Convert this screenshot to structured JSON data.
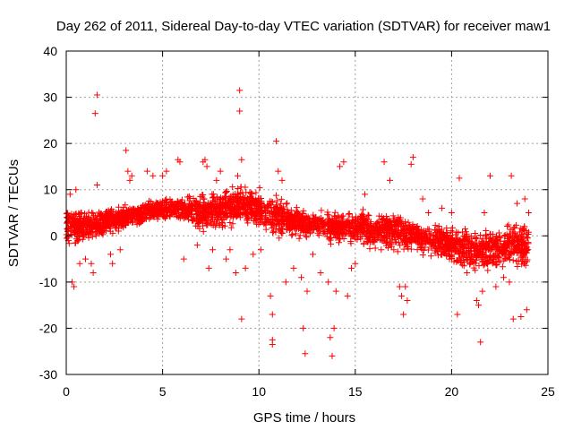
{
  "chart_data": {
    "type": "scatter",
    "title": "Day 262 of 2011, Sidereal Day-to-day VTEC variation (SDTVAR) for receiver maw1",
    "xlabel": "GPS time / hours",
    "ylabel": "SDTVAR / TECUs",
    "xlim": [
      0,
      25
    ],
    "ylim": [
      -30,
      40
    ],
    "xticks": [
      0,
      5,
      10,
      15,
      20,
      25
    ],
    "yticks": [
      -30,
      -20,
      -10,
      0,
      10,
      20,
      30,
      40
    ],
    "xtick_labels": [
      "0",
      "5",
      "10",
      "15",
      "20",
      "25"
    ],
    "ytick_labels": [
      "-30",
      "-20",
      "-10",
      "0",
      "10",
      "20",
      "30",
      "40"
    ],
    "grid": true,
    "marker": "+",
    "color": "#ff0000",
    "series": [
      {
        "name": "SDTVAR",
        "band": {
          "x": [
            0,
            1,
            2,
            3,
            4,
            5,
            6,
            7,
            8,
            9,
            10,
            11,
            12,
            13,
            14,
            15,
            16,
            17,
            18,
            19,
            20,
            21,
            22,
            23,
            24
          ],
          "center": [
            2,
            2,
            3,
            4,
            5,
            6,
            6,
            5,
            6,
            7,
            6,
            4,
            3,
            2,
            2,
            2,
            1,
            1,
            0,
            -1,
            -2,
            -3,
            -3,
            -2,
            -2
          ],
          "spread": [
            5,
            4,
            4,
            3,
            3,
            3,
            3,
            5,
            5,
            5,
            5,
            5,
            4,
            4,
            4,
            4,
            5,
            5,
            4,
            4,
            5,
            6,
            6,
            6,
            6
          ]
        },
        "points": [
          [
            0.2,
            9
          ],
          [
            0.3,
            -10
          ],
          [
            0.4,
            -11
          ],
          [
            0.5,
            10
          ],
          [
            0.7,
            -6
          ],
          [
            1.0,
            -5
          ],
          [
            1.3,
            -6
          ],
          [
            1.4,
            -8
          ],
          [
            1.5,
            26.5
          ],
          [
            1.6,
            30.5
          ],
          [
            1.6,
            11
          ],
          [
            2.3,
            -4
          ],
          [
            2.4,
            -6
          ],
          [
            2.8,
            -3
          ],
          [
            3.1,
            18.5
          ],
          [
            3.2,
            14
          ],
          [
            3.3,
            12
          ],
          [
            3.4,
            13
          ],
          [
            4.2,
            14
          ],
          [
            4.5,
            13
          ],
          [
            5.0,
            13
          ],
          [
            5.2,
            14
          ],
          [
            5.8,
            16.5
          ],
          [
            5.9,
            16
          ],
          [
            6.1,
            -5
          ],
          [
            6.8,
            -2
          ],
          [
            6.9,
            3
          ],
          [
            7.1,
            16
          ],
          [
            7.2,
            16.5
          ],
          [
            7.3,
            15
          ],
          [
            7.4,
            -7
          ],
          [
            7.6,
            -3
          ],
          [
            7.8,
            12
          ],
          [
            8.0,
            14
          ],
          [
            8.3,
            -5
          ],
          [
            8.5,
            -3
          ],
          [
            8.8,
            -8
          ],
          [
            8.9,
            13
          ],
          [
            9.0,
            31.5
          ],
          [
            9.0,
            27
          ],
          [
            9.1,
            16.5
          ],
          [
            9.1,
            -18
          ],
          [
            9.3,
            -7
          ],
          [
            9.7,
            -4
          ],
          [
            10.1,
            -3
          ],
          [
            10.6,
            -13
          ],
          [
            10.7,
            -17
          ],
          [
            10.7,
            -22.5
          ],
          [
            10.7,
            -23.5
          ],
          [
            10.9,
            20.5
          ],
          [
            11.0,
            14
          ],
          [
            11.2,
            12
          ],
          [
            11.4,
            -10
          ],
          [
            11.8,
            -7
          ],
          [
            12.2,
            -9
          ],
          [
            12.3,
            -20
          ],
          [
            12.4,
            -25.5
          ],
          [
            12.5,
            -12
          ],
          [
            12.8,
            -4
          ],
          [
            13.2,
            -8
          ],
          [
            13.6,
            -10
          ],
          [
            13.7,
            -22
          ],
          [
            13.8,
            -26
          ],
          [
            13.9,
            -20
          ],
          [
            14.0,
            -12
          ],
          [
            14.2,
            15
          ],
          [
            14.4,
            16
          ],
          [
            14.6,
            -13
          ],
          [
            14.8,
            -7
          ],
          [
            15.0,
            -6
          ],
          [
            15.5,
            9
          ],
          [
            16.5,
            16
          ],
          [
            16.8,
            12
          ],
          [
            17.0,
            -3
          ],
          [
            17.3,
            -11
          ],
          [
            17.4,
            -13
          ],
          [
            17.5,
            -17
          ],
          [
            17.6,
            -11
          ],
          [
            17.7,
            -14
          ],
          [
            17.9,
            15.5
          ],
          [
            18.0,
            17
          ],
          [
            18.5,
            8
          ],
          [
            18.8,
            5
          ],
          [
            19.5,
            6
          ],
          [
            20.0,
            5
          ],
          [
            20.3,
            -17
          ],
          [
            20.4,
            12.5
          ],
          [
            20.8,
            -8
          ],
          [
            21.3,
            -14
          ],
          [
            21.4,
            -15
          ],
          [
            21.5,
            -23
          ],
          [
            21.6,
            -12
          ],
          [
            21.7,
            5
          ],
          [
            22.0,
            13
          ],
          [
            22.3,
            -11
          ],
          [
            22.7,
            -9
          ],
          [
            23.0,
            -10
          ],
          [
            23.1,
            13
          ],
          [
            23.2,
            -18
          ],
          [
            23.4,
            7
          ],
          [
            23.6,
            -17.5
          ],
          [
            23.8,
            8
          ],
          [
            23.9,
            -16
          ],
          [
            24.0,
            5
          ]
        ]
      }
    ]
  }
}
